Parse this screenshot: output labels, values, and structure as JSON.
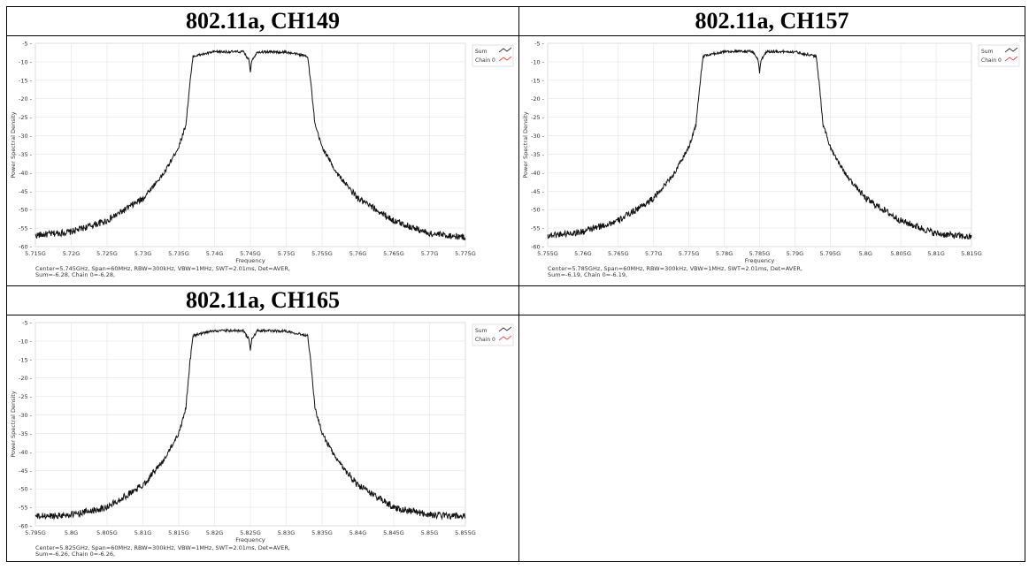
{
  "chart_data": [
    {
      "type": "line",
      "title": "802.11a, CH149",
      "xlabel": "Frequency",
      "ylabel": "Power Spectral Density",
      "x_ticks": [
        "5.715G",
        "5.72G",
        "5.725G",
        "5.73G",
        "5.735G",
        "5.74G",
        "5.745G",
        "5.75G",
        "5.755G",
        "5.76G",
        "5.765G",
        "5.77G",
        "5.775G"
      ],
      "xlim": [
        5.715,
        5.775
      ],
      "ylim": [
        -60,
        -5
      ],
      "y_ticks": [
        "-5",
        "-10",
        "-15",
        "-20",
        "-25",
        "-30",
        "-35",
        "-40",
        "-45",
        "-50",
        "-55",
        "-60"
      ],
      "center_ghz": 5.745,
      "grid": true,
      "legend_position": "top-right",
      "legend": [
        {
          "name": "Sum",
          "color": "#333333"
        },
        {
          "name": "Chain 0",
          "color": "#ff4444"
        }
      ],
      "series": [
        {
          "name": "Sum",
          "x": [
            5.715,
            5.72,
            5.725,
            5.73,
            5.733,
            5.735,
            5.736,
            5.7365,
            5.737,
            5.74,
            5.744,
            5.7448,
            5.745,
            5.7452,
            5.746,
            5.75,
            5.753,
            5.7535,
            5.754,
            5.755,
            5.757,
            5.76,
            5.765,
            5.77,
            5.775
          ],
          "y": [
            -57,
            -56,
            -53,
            -47,
            -40,
            -33,
            -27,
            -17,
            -8.5,
            -7.3,
            -7.3,
            -9.5,
            -12.5,
            -9.5,
            -7.3,
            -7.4,
            -8.5,
            -17,
            -27,
            -33,
            -40,
            -47,
            -53,
            -56.5,
            -57.5
          ]
        }
      ],
      "footer_line1": "Center=5.745GHz,  Span=60MHz,  RBW=300kHz,  VBW=1MHz,  SWT=2.01ms,  Det=AVER,",
      "footer_line2": "Sum=-6.28, Chain 0=-6.28,"
    },
    {
      "type": "line",
      "title": "802.11a, CH157",
      "xlabel": "Frequency",
      "ylabel": "Power Spectral Density",
      "x_ticks": [
        "5.755G",
        "5.76G",
        "5.765G",
        "5.77G",
        "5.775G",
        "5.78G",
        "5.785G",
        "5.79G",
        "5.795G",
        "5.8G",
        "5.805G",
        "5.81G",
        "5.815G"
      ],
      "xlim": [
        5.755,
        5.815
      ],
      "ylim": [
        -60,
        -5
      ],
      "y_ticks": [
        "-5",
        "-10",
        "-15",
        "-20",
        "-25",
        "-30",
        "-35",
        "-40",
        "-45",
        "-50",
        "-55",
        "-60"
      ],
      "center_ghz": 5.785,
      "grid": true,
      "legend_position": "top-right",
      "legend": [
        {
          "name": "Sum",
          "color": "#333333"
        },
        {
          "name": "Chain 0",
          "color": "#ff4444"
        }
      ],
      "series": [
        {
          "name": "Sum",
          "x": [
            5.755,
            5.76,
            5.765,
            5.77,
            5.773,
            5.775,
            5.776,
            5.7765,
            5.777,
            5.78,
            5.784,
            5.7848,
            5.785,
            5.7852,
            5.786,
            5.79,
            5.793,
            5.7935,
            5.794,
            5.795,
            5.797,
            5.8,
            5.805,
            5.81,
            5.815
          ],
          "y": [
            -57,
            -56,
            -53,
            -47,
            -40,
            -33,
            -27,
            -17,
            -8.5,
            -7.2,
            -7.2,
            -9.5,
            -12.8,
            -9.5,
            -7.2,
            -7.3,
            -8.5,
            -17,
            -27,
            -33,
            -40,
            -47,
            -53,
            -56.5,
            -57.5
          ]
        }
      ],
      "footer_line1": "Center=5.785GHz,  Span=60MHz,  RBW=300kHz,  VBW=1MHz,  SWT=2.01ms,  Det=AVER,",
      "footer_line2": "Sum=-6.19, Chain 0=-6.19,"
    },
    {
      "type": "line",
      "title": "802.11a, CH165",
      "xlabel": "Frequency",
      "ylabel": "Power Spectral Density",
      "x_ticks": [
        "5.795G",
        "5.8G",
        "5.805G",
        "5.81G",
        "5.815G",
        "5.82G",
        "5.825G",
        "5.83G",
        "5.835G",
        "5.84G",
        "5.845G",
        "5.85G",
        "5.855G"
      ],
      "xlim": [
        5.795,
        5.855
      ],
      "ylim": [
        -60,
        -5
      ],
      "y_ticks": [
        "-5",
        "-10",
        "-15",
        "-20",
        "-25",
        "-30",
        "-35",
        "-40",
        "-45",
        "-50",
        "-55",
        "-60"
      ],
      "center_ghz": 5.825,
      "grid": true,
      "legend_position": "top-right",
      "legend": [
        {
          "name": "Sum",
          "color": "#333333"
        },
        {
          "name": "Chain 0",
          "color": "#ff4444"
        }
      ],
      "series": [
        {
          "name": "Sum",
          "x": [
            5.795,
            5.8,
            5.805,
            5.81,
            5.813,
            5.815,
            5.816,
            5.8165,
            5.817,
            5.82,
            5.824,
            5.8248,
            5.825,
            5.8252,
            5.826,
            5.83,
            5.833,
            5.8335,
            5.834,
            5.835,
            5.837,
            5.84,
            5.845,
            5.85,
            5.855
          ],
          "y": [
            -57.5,
            -57,
            -55,
            -49,
            -42,
            -35,
            -28,
            -17,
            -8.5,
            -7.2,
            -7.2,
            -9.5,
            -12.3,
            -9.5,
            -7.2,
            -7.3,
            -8.5,
            -17,
            -28,
            -35,
            -42,
            -49,
            -55,
            -57,
            -57.5
          ]
        }
      ],
      "footer_line1": "Center=5.825GHz,  Span=60MHz,  RBW=300kHz,  VBW=1MHz,  SWT=2.01ms,  Det=AVER,",
      "footer_line2": "Sum=-6.26, Chain 0=-6.26,"
    }
  ]
}
